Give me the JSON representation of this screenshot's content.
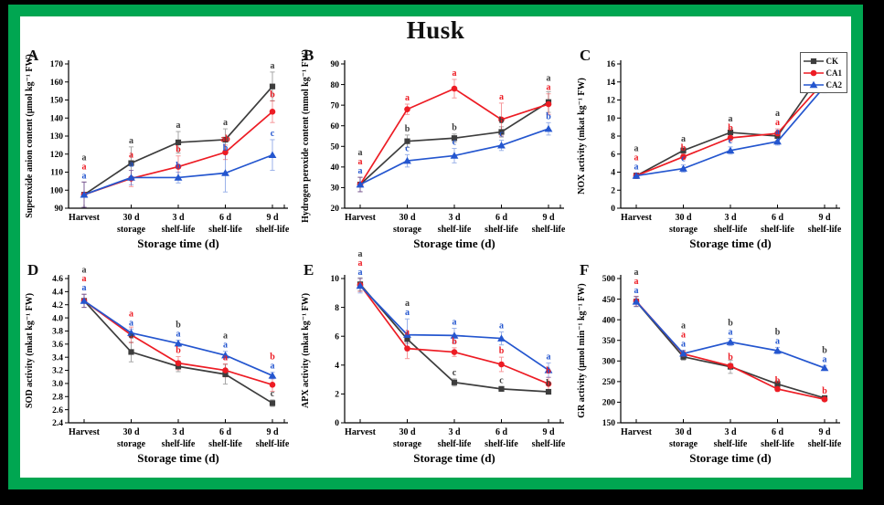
{
  "page": {
    "title": "Husk",
    "frame_color": "#00a651",
    "outer_background": "#000000",
    "panel_background": "#ffffff"
  },
  "legend": {
    "entries": [
      {
        "label": "CK",
        "color": "#3d3d3d",
        "marker": "square"
      },
      {
        "label": "CA1",
        "color": "#ed1c24",
        "marker": "circle"
      },
      {
        "label": "CA2",
        "color": "#2456cf",
        "marker": "triangle"
      }
    ]
  },
  "chart_data": [
    {
      "panel": "A",
      "type": "line",
      "ylabel": "Superoxide anion content (μmol kg⁻¹ FW)",
      "xlabel": "Storage time (d)",
      "categories": [
        [
          "Harvest",
          ""
        ],
        [
          "30 d",
          "storage"
        ],
        [
          "3 d",
          "shelf-life"
        ],
        [
          "6 d",
          "shelf-life"
        ],
        [
          "9 d",
          "shelf-life"
        ]
      ],
      "ylim": [
        90,
        170
      ],
      "ytick_step": 10,
      "ytick_decimals": 0,
      "series": [
        {
          "name": "CK",
          "values": [
            97.5,
            115,
            126.5,
            128,
            157.5
          ],
          "errors": [
            7,
            9,
            6,
            6,
            8
          ],
          "letters": [
            "a",
            "a",
            "a",
            "a",
            "a"
          ]
        },
        {
          "name": "CA1",
          "values": [
            97.5,
            106.5,
            113,
            121,
            143.5
          ],
          "errors": [
            7,
            4.5,
            6,
            4,
            6
          ],
          "letters": [
            "a",
            "a",
            "b",
            "ab",
            "b"
          ]
        },
        {
          "name": "CA2",
          "values": [
            97.5,
            107,
            107,
            109.5,
            119.5
          ],
          "errors": [
            7,
            4,
            3,
            10.5,
            8.5
          ],
          "letters": [
            "a",
            "a",
            "b",
            "b",
            "c"
          ]
        }
      ]
    },
    {
      "panel": "B",
      "type": "line",
      "ylabel": "Hydrogen peroxide content (mmol kg⁻¹ FW)",
      "xlabel": "Storage time (d)",
      "categories": [
        [
          "Harvest",
          ""
        ],
        [
          "30 d",
          "storage"
        ],
        [
          "3 d",
          "shelf-life"
        ],
        [
          "6 d",
          "shelf-life"
        ],
        [
          "9 d",
          "shelf-life"
        ]
      ],
      "ylim": [
        20,
        90
      ],
      "ytick_step": 10,
      "ytick_decimals": 0,
      "series": [
        {
          "name": "CK",
          "values": [
            31.5,
            52.5,
            54,
            57,
            71.5
          ],
          "errors": [
            3.5,
            3,
            2,
            2.5,
            5
          ],
          "letters": [
            "a",
            "b",
            "b",
            "b",
            "a"
          ]
        },
        {
          "name": "CA1",
          "values": [
            31.5,
            68,
            78,
            63,
            70.5
          ],
          "errors": [
            3.5,
            2.5,
            4.5,
            8,
            5
          ],
          "letters": [
            "a",
            "a",
            "a",
            "a",
            "a"
          ]
        },
        {
          "name": "CA2",
          "values": [
            31.5,
            43,
            45.5,
            50.5,
            58.5
          ],
          "errors": [
            3.5,
            3,
            3.5,
            2.5,
            3
          ],
          "letters": [
            "a",
            "c",
            "c",
            "c",
            "b"
          ]
        }
      ]
    },
    {
      "panel": "C",
      "type": "line",
      "ylabel": "NOX activity (mkat kg⁻¹ FW)",
      "xlabel": "Storage time (d)",
      "categories": [
        [
          "Harvest",
          ""
        ],
        [
          "30 d",
          "storage"
        ],
        [
          "3 d",
          "shelf-life"
        ],
        [
          "6 d",
          "shelf-life"
        ],
        [
          "9 d",
          "shelf-life"
        ]
      ],
      "ylim": [
        0,
        16
      ],
      "ytick_step": 2,
      "ytick_decimals": 0,
      "series": [
        {
          "name": "CK",
          "values": [
            3.6,
            6.4,
            8.4,
            8.0,
            15.5
          ],
          "errors": [
            0.3,
            0.3,
            0.5,
            0.5,
            0.5
          ],
          "letters": [
            "a",
            "a",
            "a",
            "a",
            "a"
          ]
        },
        {
          "name": "CA1",
          "values": [
            3.6,
            5.7,
            7.8,
            8.3,
            14.1
          ],
          "errors": [
            0.3,
            0.3,
            0.4,
            0.5,
            0.6
          ],
          "letters": [
            "a",
            "b",
            "b",
            "a",
            "b"
          ]
        },
        {
          "name": "CA2",
          "values": [
            3.6,
            4.4,
            6.4,
            7.4,
            13.5
          ],
          "errors": [
            0.3,
            0.4,
            0.4,
            0.4,
            0.7
          ],
          "letters": [
            "a",
            "c",
            "c",
            "a",
            "b"
          ]
        }
      ]
    },
    {
      "panel": "D",
      "type": "line",
      "ylabel": "SOD activity (mkat kg⁻¹ FW)",
      "xlabel": "Storage time (d)",
      "categories": [
        [
          "Harvest",
          ""
        ],
        [
          "30 d",
          "storage"
        ],
        [
          "3 d",
          "shelf-life"
        ],
        [
          "6 d",
          "shelf-life"
        ],
        [
          "9 d",
          "shelf-life"
        ]
      ],
      "ylim": [
        2.4,
        4.6
      ],
      "ytick_step": 0.2,
      "ytick_decimals": 1,
      "series": [
        {
          "name": "CK",
          "values": [
            4.26,
            3.48,
            3.26,
            3.14,
            2.7
          ],
          "errors": [
            0.1,
            0.15,
            0.08,
            0.15,
            0.05
          ],
          "letters": [
            "a",
            "a",
            "b",
            "a",
            "c"
          ]
        },
        {
          "name": "CA1",
          "values": [
            4.26,
            3.74,
            3.31,
            3.2,
            2.98
          ],
          "errors": [
            0.1,
            0.12,
            0.1,
            0.1,
            0.1
          ],
          "letters": [
            "a",
            "a",
            "b",
            "a",
            "b"
          ]
        },
        {
          "name": "CA2",
          "values": [
            4.26,
            3.77,
            3.61,
            3.43,
            3.12
          ],
          "errors": [
            0.1,
            0.06,
            0.05,
            0.06,
            0.05
          ],
          "letters": [
            "a",
            "a",
            "a",
            "a",
            "a"
          ]
        }
      ]
    },
    {
      "panel": "E",
      "type": "line",
      "ylabel": "APX activity (mkat kg⁻¹ FW)",
      "xlabel": "Storage time (d)",
      "categories": [
        [
          "Harvest",
          ""
        ],
        [
          "30 d",
          "storage"
        ],
        [
          "3 d",
          "shelf-life"
        ],
        [
          "6 d",
          "shelf-life"
        ],
        [
          "9 d",
          "shelf-life"
        ]
      ],
      "ylim": [
        0,
        10
      ],
      "ytick_step": 2,
      "ytick_decimals": 0,
      "series": [
        {
          "name": "CK",
          "values": [
            9.6,
            5.8,
            2.8,
            2.35,
            2.15
          ],
          "errors": [
            0.45,
            0.3,
            0.25,
            0.15,
            0.15
          ],
          "letters": [
            "a",
            "a",
            "c",
            "c",
            "b"
          ]
        },
        {
          "name": "CA1",
          "values": [
            9.55,
            5.15,
            4.9,
            4.05,
            2.7
          ],
          "errors": [
            0.45,
            0.7,
            0.3,
            0.5,
            0.45
          ],
          "letters": [
            "a",
            "a",
            "b",
            "b",
            "b"
          ]
        },
        {
          "name": "CA2",
          "values": [
            9.5,
            6.1,
            6.05,
            5.85,
            3.65
          ],
          "errors": [
            0.5,
            1.1,
            0.5,
            0.45,
            0.5
          ],
          "letters": [
            "a",
            "a",
            "a",
            "a",
            "a"
          ]
        }
      ]
    },
    {
      "panel": "F",
      "type": "line",
      "ylabel": "GR activity (μmol min⁻¹ kg⁻¹ FW)",
      "xlabel": "Storage time (d)",
      "categories": [
        [
          "Harvest",
          ""
        ],
        [
          "30 d",
          "storage"
        ],
        [
          "3 d",
          "shelf-life"
        ],
        [
          "6 d",
          "shelf-life"
        ],
        [
          "9 d",
          "shelf-life"
        ]
      ],
      "ylim": [
        150,
        500
      ],
      "ytick_step": 50,
      "ytick_decimals": 0,
      "series": [
        {
          "name": "CK",
          "values": [
            444,
            310,
            286,
            244,
            210
          ],
          "errors": [
            12,
            8,
            16,
            8,
            5
          ],
          "letters": [
            "a",
            "a",
            "b",
            "b",
            "b"
          ]
        },
        {
          "name": "CA1",
          "values": [
            445,
            317,
            288,
            232,
            207
          ],
          "errors": [
            12,
            8,
            6,
            6,
            5
          ],
          "letters": [
            "a",
            "a",
            "b",
            "b",
            "b"
          ]
        },
        {
          "name": "CA2",
          "values": [
            444,
            318,
            346,
            325,
            283
          ],
          "errors": [
            12,
            8,
            9,
            8,
            6
          ],
          "letters": [
            "a",
            "a",
            "a",
            "a",
            "a"
          ]
        }
      ]
    }
  ]
}
